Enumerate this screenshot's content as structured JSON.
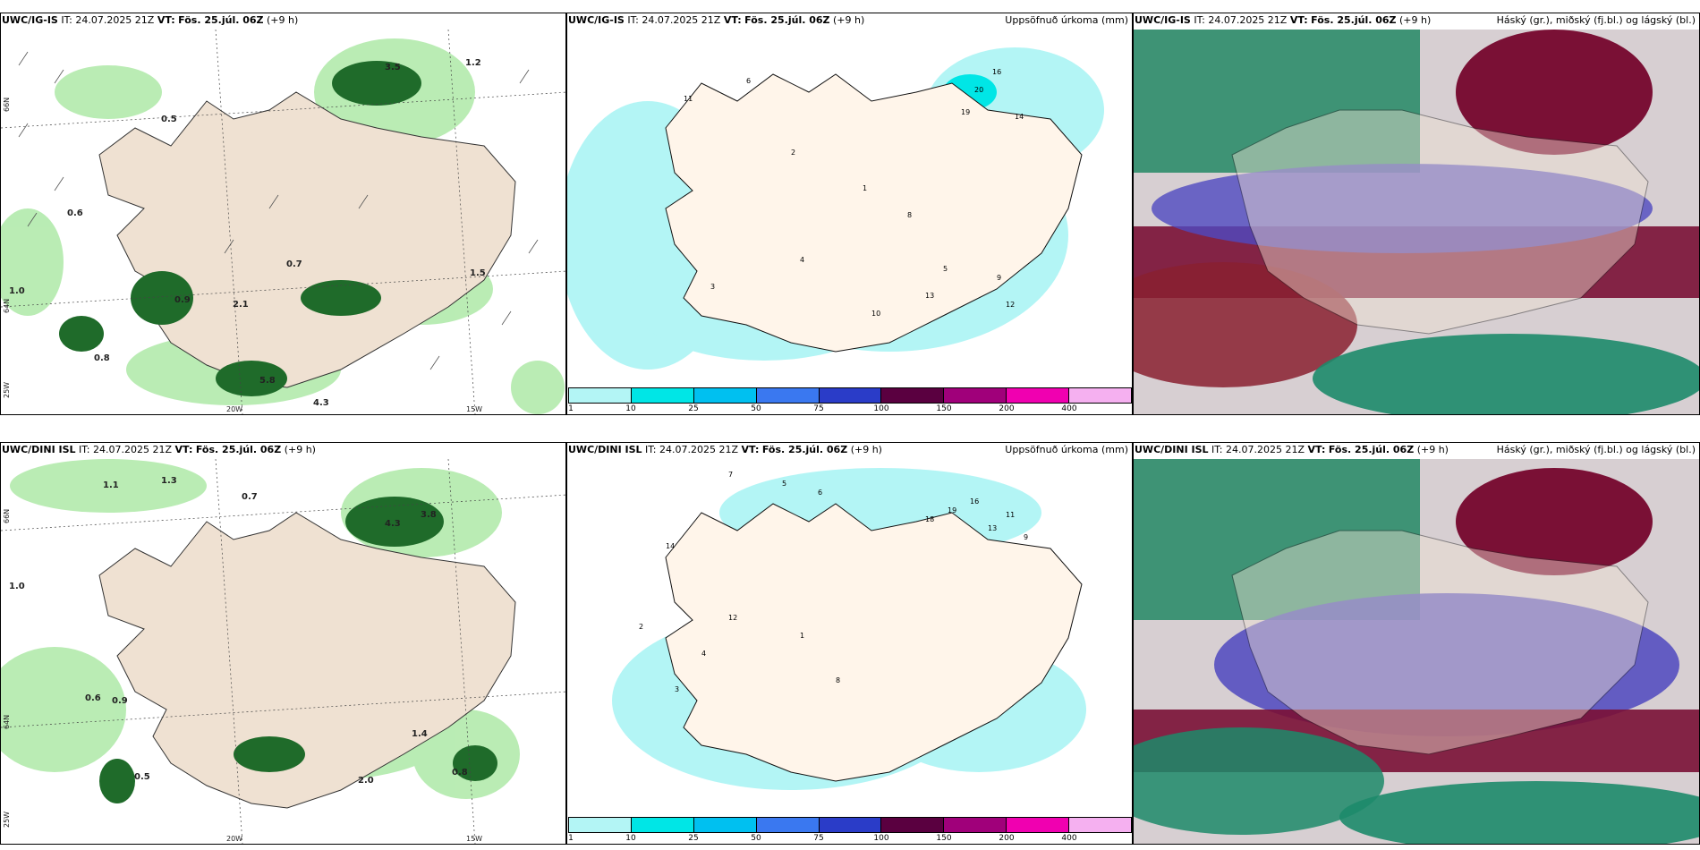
{
  "rows": [
    {
      "model": "UWC/IG-IS",
      "it_label": "IT:",
      "it_value": "24.07.2025 21Z",
      "vt_label": "VT:",
      "vt_value": "Fös. 25.júl. 06Z",
      "lead": "(+9 h)"
    },
    {
      "model": "UWC/DINI ISL",
      "it_label": "IT:",
      "it_value": "24.07.2025 21Z",
      "vt_label": "VT:",
      "vt_value": "Fös. 25.júl. 06Z",
      "lead": "(+9 h)"
    }
  ],
  "precip_title": "Uppsöfnuð úrkoma (mm)",
  "cloud_title": "Háský (gr.), miðský (fj.bl.) og lágský (bl.)",
  "colorbar": {
    "ticks": [
      "1",
      "10",
      "25",
      "50",
      "75",
      "100",
      "150",
      "200",
      "400"
    ],
    "colors": [
      "#b3f5f5",
      "#00e6e6",
      "#00c0f0",
      "#3a78f0",
      "#2a3cc8",
      "#5a0040",
      "#a0007a",
      "#f000b0",
      "#f5b0f0"
    ]
  },
  "axis": {
    "lon": [
      "20W",
      "15W"
    ],
    "lat": [
      "66N",
      "64N",
      "25W"
    ]
  },
  "precip_labels_ig": [
    "6",
    "2",
    "1",
    "3",
    "4",
    "5",
    "9",
    "12",
    "10",
    "20",
    "16",
    "14",
    "8",
    "11",
    "13",
    "19"
  ],
  "precip_labels_dini": [
    "7",
    "5",
    "6",
    "2",
    "4",
    "3",
    "14",
    "12",
    "1",
    "8",
    "18",
    "16",
    "13",
    "11",
    "9",
    "19"
  ],
  "wind_labels_ig": [
    "1.0",
    "0.5",
    "0.6",
    "0.8",
    "1.2",
    "1.5",
    "0.7",
    "0.9",
    "2.1",
    "3.5",
    "4.3",
    "5.8"
  ],
  "wind_labels_dini": [
    "1.0",
    "0.6",
    "0.5",
    "0.9",
    "0.7",
    "1.4",
    "2.0",
    "0.8",
    "1.1",
    "4.3",
    "3.8",
    "1.3"
  ],
  "colors": {
    "land": "#efe1d2",
    "sea_green_light": "#b6ebb0",
    "sea_green_dark": "#1f6b2a",
    "high_cloud": "#2e8c6a",
    "mid_cloud": "#7a1035",
    "low_cloud": "#4f48c0"
  }
}
